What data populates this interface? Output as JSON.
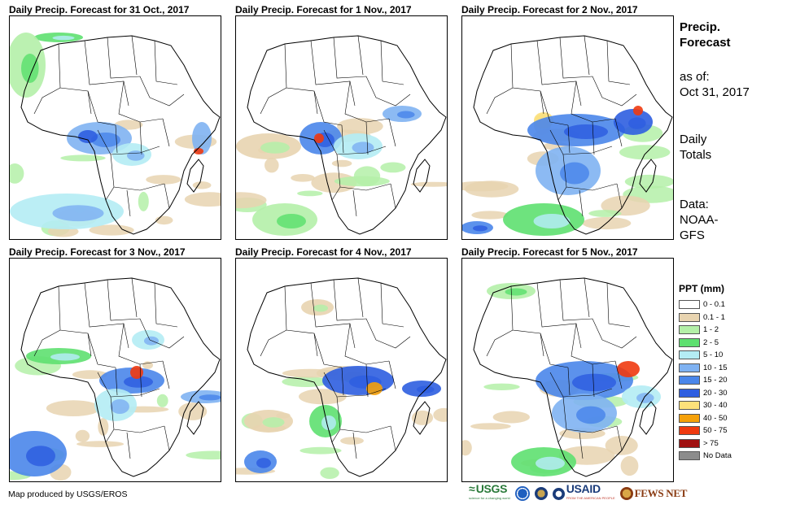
{
  "panels": [
    {
      "title": "Daily Precip. Forecast for 31 Oct., 2017"
    },
    {
      "title": "Daily Precip. Forecast for 1 Nov., 2017"
    },
    {
      "title": "Daily Precip. Forecast for 2 Nov., 2017"
    },
    {
      "title": "Daily Precip. Forecast for 3 Nov., 2017"
    },
    {
      "title": "Daily Precip. Forecast for 4 Nov., 2017"
    },
    {
      "title": "Daily Precip. Forecast for 5 Nov., 2017"
    }
  ],
  "sidebar": {
    "title_line1": "Precip.",
    "title_line2": "Forecast",
    "asof_label": "as of:",
    "asof_date": "Oct 31, 2017",
    "totals_line1": "Daily",
    "totals_line2": "Totals",
    "data_line1": "Data:",
    "data_line2": "NOAA-",
    "data_line3": "GFS"
  },
  "legend": {
    "title": "PPT (mm)",
    "items": [
      {
        "label": "0 - 0.1",
        "color": "#ffffff"
      },
      {
        "label": "0.1 - 1",
        "color": "#e8d4b0"
      },
      {
        "label": "1 - 2",
        "color": "#b4f0a8"
      },
      {
        "label": "2 - 5",
        "color": "#5ee070"
      },
      {
        "label": "5 - 10",
        "color": "#b4ecf4"
      },
      {
        "label": "10 - 15",
        "color": "#7fb2f2"
      },
      {
        "label": "15 - 20",
        "color": "#4a86ea"
      },
      {
        "label": "20 - 30",
        "color": "#2e5ee0"
      },
      {
        "label": "30 - 40",
        "color": "#fce07a"
      },
      {
        "label": "40 - 50",
        "color": "#f5a10a"
      },
      {
        "label": "50 - 75",
        "color": "#ef3a10"
      },
      {
        "label": "> 75",
        "color": "#a01010"
      },
      {
        "label": "No Data",
        "color": "#8c8c8c"
      }
    ]
  },
  "footer": {
    "credit": "Map produced by USGS/EROS",
    "logos": {
      "usgs": "USGS",
      "usgs_tagline": "science for a changing world",
      "usaid": "USAID",
      "usaid_tagline": "FROM THE AMERICAN PEOPLE",
      "fewsnet": "FEWS NET"
    }
  }
}
